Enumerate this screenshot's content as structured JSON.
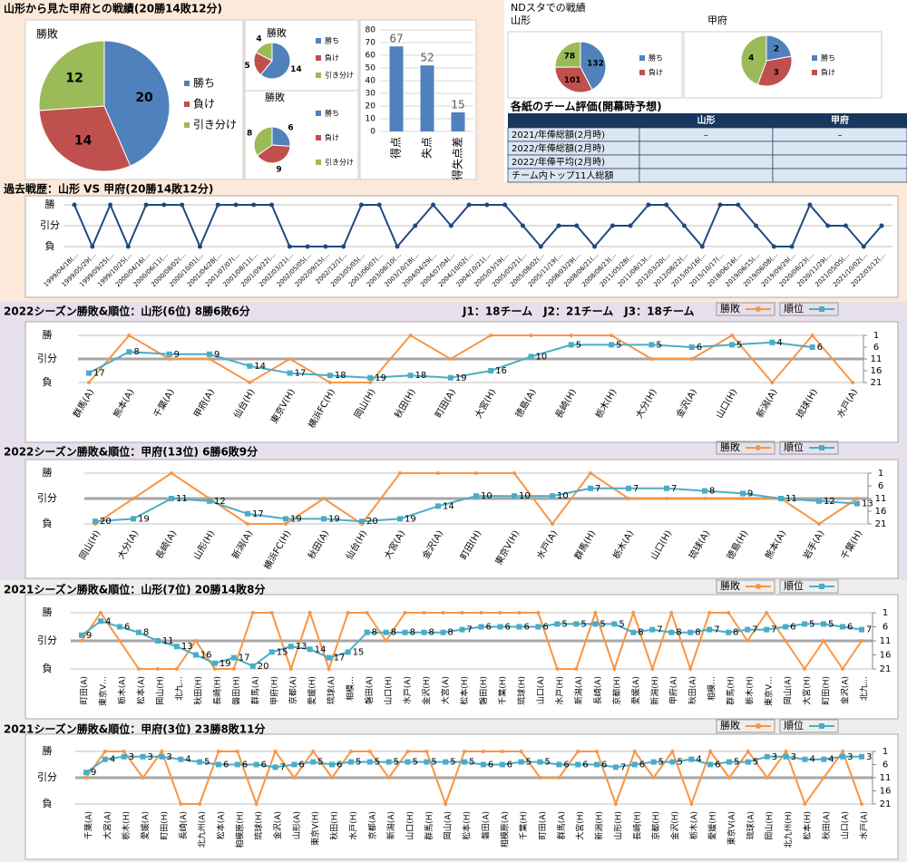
{
  "header": {
    "title": "山形から見た甲府との戦績(20勝14敗12分)",
    "nd_title": "NDスタでの戦績"
  },
  "table": {
    "title": "各紙のチーム評価(開幕時予想)",
    "columns": [
      "山形",
      "甲府"
    ],
    "rows": [
      [
        "2021/年俸総額(2月時)",
        "–",
        "–"
      ],
      [
        "2022/年俸総額(2月時)"
      ],
      [
        "2022/年俸平均(2月時)"
      ],
      [
        "チーム内トップ11人総額"
      ]
    ]
  },
  "chart_data": [
    {
      "type": "pie",
      "title": "勝敗",
      "categories": [
        "勝ち",
        "負け",
        "引き分け"
      ],
      "values": [
        20,
        14,
        12
      ],
      "colors": [
        "#4f81bd",
        "#c0504d",
        "#9bbb59"
      ]
    },
    {
      "type": "pie",
      "title": "勝敗",
      "categories": [
        "勝ち",
        "負け",
        "引き分け"
      ],
      "values": [
        14,
        5,
        4
      ],
      "colors": [
        "#4f81bd",
        "#c0504d",
        "#9bbb59"
      ]
    },
    {
      "type": "pie",
      "title": "勝敗",
      "categories": [
        "勝ち",
        "負け",
        "引き分け"
      ],
      "values": [
        6,
        9,
        8
      ],
      "colors": [
        "#4f81bd",
        "#c0504d",
        "#9bbb59"
      ]
    },
    {
      "type": "bar",
      "categories": [
        "得点",
        "失点",
        "得失点差"
      ],
      "values": [
        67,
        52,
        15
      ],
      "color": "#4f81bd",
      "ylim": [
        0,
        80
      ],
      "yticks": [
        0,
        10,
        20,
        30,
        40,
        50,
        60,
        70,
        80
      ],
      "grid": true
    },
    {
      "type": "pie",
      "title": "山形",
      "categories": [
        "勝ち",
        "負け",
        null
      ],
      "values": [
        132,
        101,
        78
      ],
      "colors": [
        "#4f81bd",
        "#c0504d",
        "#9bbb59"
      ]
    },
    {
      "type": "pie",
      "title": "甲府",
      "categories": [
        "勝ち",
        "負け",
        null
      ],
      "values": [
        2,
        3,
        4
      ],
      "colors": [
        "#4f81bd",
        "#c0504d",
        "#9bbb59"
      ]
    },
    {
      "type": "line",
      "title": "過去戦歴：山形 VS 甲府(20勝14敗12分)",
      "categories": [
        "1999/04/18(…",
        "1999/05/29(…",
        "1999/09/25(…",
        "1999/10/25(…",
        "2000/04/16(…",
        "2000/06/11(…",
        "2000/08/02(…",
        "2000/10/01(…",
        "2001/04/28(…",
        "2001/07/07(…",
        "2001/08/11(…",
        "2001/09/22(…",
        "2002/03/21(…",
        "2002/05/05(…",
        "2002/09/15(…",
        "2002/12/1(…",
        "2003/05/05(…",
        "2003/06/07(…",
        "2003/08/10(…",
        "2003/10/18(…",
        "2004/04/29(…",
        "2004/07/04(…",
        "2004/10/02(…",
        "2004/10/21(…",
        "2005/03/19(…",
        "2005/05/21(…",
        "2005/08/02(…",
        "2005/11/19(…",
        "2008/03/29(…",
        "2008/06/21(…",
        "2008/08/23(…",
        "2011/05/28(…",
        "2011/08/13(…",
        "2012/03/20(…",
        "2012/08/22(…",
        "2015/05/16(…",
        "2015/10/17(…",
        "2018/06/16(…",
        "2019/06/15(…",
        "2019/06/08(…",
        "2019/09/29(…",
        "2020/08/23(…",
        "2020/11/29(…",
        "2021/05/05(…",
        "2021/10/02(…",
        "2022/03/12(…"
      ],
      "values": [
        1,
        -1,
        1,
        -1,
        1,
        1,
        1,
        -1,
        1,
        1,
        1,
        1,
        -1,
        -1,
        -1,
        -1,
        1,
        1,
        -1,
        0,
        1,
        0,
        1,
        1,
        1,
        0,
        -1,
        0,
        0,
        -1,
        0,
        0,
        1,
        1,
        0,
        -1,
        1,
        1,
        0,
        -1,
        -1,
        1,
        0,
        0,
        -1,
        0
      ],
      "color": "#1f497d",
      "ylim": [
        -1,
        1
      ],
      "yticks": [
        {
          "value": 1,
          "label": "勝"
        },
        {
          "value": 0,
          "label": "引分"
        },
        {
          "value": -1,
          "label": "負"
        }
      ],
      "grid": true
    },
    {
      "type": "combo",
      "title": "2022シーズン勝敗&順位：山形(6位) 8勝6敗6分",
      "subtitle": "J1：18チーム　J2：21チーム　J3：18チーム",
      "categories": [
        "群馬(A)",
        "熊本(A)",
        "千葉(A)",
        "甲府(A)",
        "仙台(H)",
        "東京V(H)",
        "横浜FC(H)",
        "岡山(H)",
        "秋田(H)",
        "町田(A)",
        "大宮(H)",
        "徳島(A)",
        "長崎(H)",
        "栃木(H)",
        "大分(H)",
        "金沢(A)",
        "山口(H)",
        "新潟(A)",
        "琉球(H)",
        "水戸(A)"
      ],
      "series": [
        {
          "name": "勝敗",
          "color": "#f79646",
          "values": [
            -1,
            1,
            0,
            0,
            -1,
            0,
            -1,
            -1,
            1,
            0,
            1,
            1,
            1,
            1,
            0,
            0,
            1,
            -1,
            1,
            -1
          ]
        },
        {
          "name": "順位",
          "color": "#4bacc6",
          "axis": "y2",
          "values": [
            17,
            8,
            9,
            9,
            14,
            17,
            18,
            19,
            18,
            19,
            16,
            10,
            5,
            5,
            5,
            6,
            5,
            4,
            6,
            null
          ]
        }
      ],
      "ylim": [
        -1,
        1
      ],
      "yticks": [
        {
          "value": 1,
          "label": "勝"
        },
        {
          "value": 0,
          "label": "引分"
        },
        {
          "value": -1,
          "label": "負"
        }
      ],
      "y2lim": [
        1,
        21
      ],
      "y2ticks": [
        1,
        6,
        11,
        16,
        21
      ],
      "y2_inverted": true,
      "grid": true
    },
    {
      "type": "combo",
      "title": "2022シーズン勝敗&順位：甲府(13位) 6勝6敗9分",
      "categories": [
        "岡山(H)",
        "大分(A)",
        "長崎(A)",
        "山形(H)",
        "新潟(A)",
        "横浜FC(H)",
        "秋田(A)",
        "仙台(H)",
        "大宮(A)",
        "金沢(A)",
        "町田(H)",
        "東京V(H)",
        "水戸(A)",
        "群馬(H)",
        "栃木(A)",
        "山口(H)",
        "琉球(A)",
        "徳島(H)",
        "熊本(A)",
        "岩手(A)",
        "千葉(H)"
      ],
      "series": [
        {
          "name": "勝敗",
          "color": "#f79646",
          "values": [
            -1,
            0,
            1,
            0,
            -1,
            -1,
            0,
            -1,
            1,
            1,
            1,
            1,
            -1,
            1,
            0,
            0,
            0,
            0,
            0,
            -1,
            0
          ]
        },
        {
          "name": "順位",
          "color": "#4bacc6",
          "axis": "y2",
          "values": [
            20,
            19,
            11,
            12,
            17,
            19,
            19,
            20,
            19,
            14,
            10,
            10,
            10,
            7,
            7,
            7,
            8,
            9,
            11,
            12,
            13
          ]
        }
      ],
      "ylim": [
        -1,
        1
      ],
      "yticks": [
        {
          "value": 1,
          "label": "勝"
        },
        {
          "value": 0,
          "label": "引分"
        },
        {
          "value": -1,
          "label": "負"
        }
      ],
      "y2lim": [
        1,
        21
      ],
      "y2ticks": [
        1,
        6,
        11,
        16,
        21
      ],
      "y2_inverted": true,
      "grid": true
    },
    {
      "type": "combo",
      "title": "2021シーズン勝敗&順位：山形(7位) 20勝14敗8分",
      "categories": [
        "町田(A)",
        "東京V…",
        "栃木(A)",
        "松本(A)",
        "岡山(H)",
        "北九…",
        "秋田(H)",
        "長崎(H)",
        "磐田(H)",
        "群馬(A)",
        "甲府(H)",
        "京都(A)",
        "愛媛(H)",
        "琉球(A)",
        "相模…",
        "磐田(A)",
        "山口(H)",
        "水戸(A)",
        "金沢(H)",
        "大宮(A)",
        "松本(H)",
        "磐田(H)",
        "千葉(H)",
        "琉球(H)",
        "山口(A)",
        "水戸(H)",
        "新潟(A)",
        "長崎(A)",
        "京都(H)",
        "愛媛(A)",
        "新潟(H)",
        "甲府(A)",
        "秋田(A)",
        "相模…",
        "群馬(H)",
        "栃木(H)",
        "東京V…",
        "岡山(A)",
        "大宮(H)",
        "町田(H)",
        "金沢(A)",
        "北九…"
      ],
      "series": [
        {
          "name": "勝敗",
          "color": "#f79646",
          "values": [
            0,
            1,
            0,
            -1,
            -1,
            -1,
            0,
            -1,
            -1,
            1,
            1,
            -1,
            1,
            -1,
            1,
            1,
            0,
            1,
            1,
            1,
            1,
            1,
            1,
            1,
            1,
            -1,
            -1,
            1,
            -1,
            1,
            -1,
            1,
            -1,
            1,
            1,
            0,
            1,
            0,
            -1,
            0,
            -1,
            0
          ]
        },
        {
          "name": "順位",
          "color": "#4bacc6",
          "axis": "y2",
          "values": [
            9,
            4,
            6,
            8,
            11,
            13,
            16,
            19,
            17,
            20,
            15,
            13,
            14,
            17,
            15,
            8,
            8,
            8,
            8,
            8,
            7,
            6,
            6,
            6,
            6,
            5,
            5,
            5,
            5,
            8,
            7,
            8,
            8,
            7,
            8,
            7,
            7,
            6,
            5,
            5,
            6,
            7
          ]
        }
      ],
      "ylim": [
        -1,
        1
      ],
      "yticks": [
        {
          "value": 1,
          "label": "勝"
        },
        {
          "value": 0,
          "label": "引分"
        },
        {
          "value": -1,
          "label": "負"
        }
      ],
      "y2lim": [
        1,
        21
      ],
      "y2ticks": [
        1,
        6,
        11,
        16,
        21
      ],
      "y2_inverted": true,
      "grid": true
    },
    {
      "type": "combo",
      "title": "2021シーズン勝敗&順位：甲府(3位) 23勝8敗11分",
      "categories": [
        "千葉(A)",
        "大宮(A)",
        "栃木(H)",
        "愛媛(A)",
        "町田(H)",
        "長崎(A)",
        "北九州(A)",
        "松本(A)",
        "相模原(H)",
        "琉球(H)",
        "金沢(A)",
        "山形(A)",
        "東京V(H)",
        "秋田(H)",
        "水戸(H)",
        "京都(A)",
        "新潟(A)",
        "山口(H)",
        "群馬(H)",
        "岡山(A)",
        "松本(H)",
        "磐田(A)",
        "相模原(A)",
        "千葉(H)",
        "町田(A)",
        "群馬(A)",
        "大宮(H)",
        "新潟(H)",
        "山形(H)",
        "長崎(H)",
        "京都(H)",
        "金沢(H)",
        "栃木(A)",
        "愛媛(H)",
        "東京V(A)",
        "琉球(A)",
        "岡山(H)",
        "北九州(H)",
        "松本(H)",
        "秋田(A)",
        "山口(A)",
        "水戸(A)"
      ],
      "series": [
        {
          "name": "勝敗",
          "color": "#f79646",
          "values": [
            0,
            1,
            1,
            0,
            1,
            -1,
            -1,
            1,
            1,
            -1,
            1,
            0,
            1,
            0,
            1,
            1,
            0,
            1,
            1,
            -1,
            1,
            1,
            1,
            1,
            0,
            0,
            1,
            1,
            -1,
            1,
            0,
            1,
            -1,
            1,
            0,
            1,
            0,
            1,
            -1,
            0,
            1,
            -1
          ]
        },
        {
          "name": "順位",
          "color": "#4bacc6",
          "axis": "y2",
          "values": [
            9,
            4,
            3,
            3,
            3,
            4,
            5,
            6,
            6,
            6,
            7,
            6,
            5,
            6,
            5,
            5,
            5,
            5,
            5,
            5,
            5,
            6,
            6,
            5,
            5,
            6,
            6,
            6,
            7,
            6,
            5,
            5,
            4,
            6,
            5,
            5,
            3,
            3,
            4,
            4,
            3,
            3
          ]
        }
      ],
      "ylim": [
        -1,
        1
      ],
      "yticks": [
        {
          "value": 1,
          "label": "勝"
        },
        {
          "value": 0,
          "label": "引分"
        },
        {
          "value": -1,
          "label": "負"
        }
      ],
      "y2lim": [
        1,
        21
      ],
      "y2ticks": [
        1,
        6,
        11,
        16,
        21
      ],
      "y2_inverted": true,
      "grid": true
    }
  ]
}
